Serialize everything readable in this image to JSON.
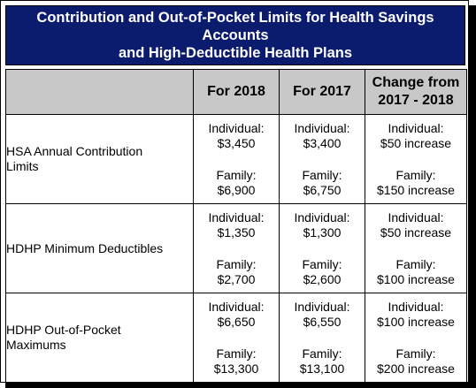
{
  "title": {
    "line1": "Contribution and Out-of-Pocket Limits for Health Savings",
    "line2": "Accounts",
    "line3": "and High-Deductible Health Plans"
  },
  "table": {
    "headers": {
      "col1": "",
      "col2": "For 2018",
      "col3": "For 2017",
      "col4_line1": "Change from",
      "col4_line2": "2017 - 2018"
    },
    "rows": [
      {
        "label_line1": "HSA Annual Contribution",
        "label_line2": "Limits",
        "y2018": {
          "ind_label": "Individual:",
          "ind_value": "$3,450",
          "fam_label": "Family:",
          "fam_value": "$6,900"
        },
        "y2017": {
          "ind_label": "Individual:",
          "ind_value": "$3,400",
          "fam_label": "Family:",
          "fam_value": "$6,750"
        },
        "change": {
          "ind_label": "Individual:",
          "ind_value": "$50 increase",
          "fam_label": "Family:",
          "fam_value": "$150 increase"
        }
      },
      {
        "label_line1": "HDHP Minimum Deductibles",
        "label_line2": "",
        "y2018": {
          "ind_label": "Individual:",
          "ind_value": "$1,350",
          "fam_label": "Family:",
          "fam_value": "$2,700"
        },
        "y2017": {
          "ind_label": "Individual:",
          "ind_value": "$1,300",
          "fam_label": "Family:",
          "fam_value": "$2,600"
        },
        "change": {
          "ind_label": "Individual:",
          "ind_value": "$50 increase",
          "fam_label": "Family:",
          "fam_value": "$100 increase"
        }
      },
      {
        "label_line1": "HDHP Out-of-Pocket",
        "label_line2": "Maximums",
        "y2018": {
          "ind_label": "Individual:",
          "ind_value": "$6,650",
          "fam_label": "Family:",
          "fam_value": "$13,300"
        },
        "y2017": {
          "ind_label": "Individual:",
          "ind_value": "$6,550",
          "fam_label": "Family:",
          "fam_value": "$13,100"
        },
        "change": {
          "ind_label": "Individual:",
          "ind_value": "$100 increase",
          "fam_label": "Family:",
          "fam_value": "$200 increase"
        }
      }
    ]
  }
}
